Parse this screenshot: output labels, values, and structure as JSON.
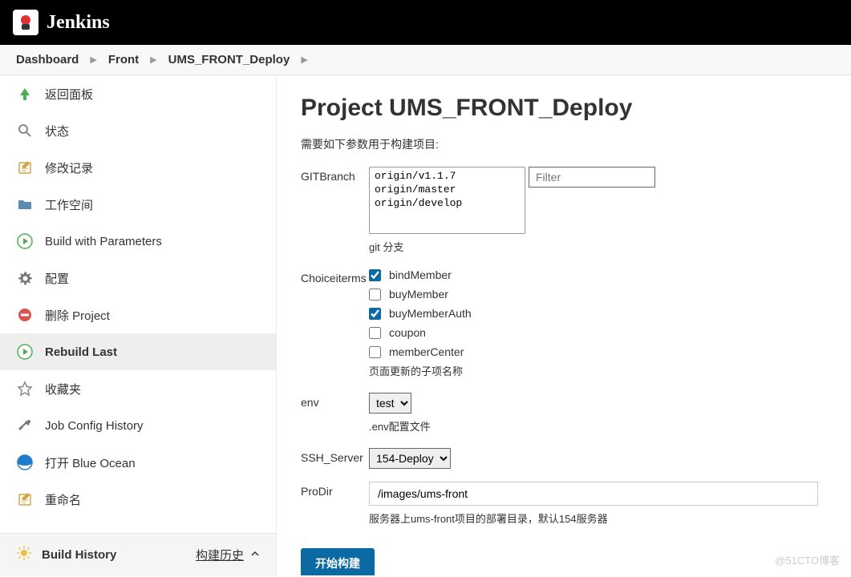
{
  "header": {
    "brand": "Jenkins"
  },
  "breadcrumbs": [
    {
      "label": "Dashboard"
    },
    {
      "label": "Front"
    },
    {
      "label": "UMS_FRONT_Deploy"
    }
  ],
  "sidebar": {
    "items": [
      {
        "label": "返回面板",
        "icon": "arrow-up",
        "color": "#4caf50"
      },
      {
        "label": "状态",
        "icon": "search",
        "color": "#888"
      },
      {
        "label": "修改记录",
        "icon": "notepad",
        "color": "#d4a548"
      },
      {
        "label": "工作空间",
        "icon": "folder",
        "color": "#5b8ab3"
      },
      {
        "label": "Build with Parameters",
        "icon": "play-circle",
        "color": "#4caf50"
      },
      {
        "label": "配置",
        "icon": "gear",
        "color": "#777"
      },
      {
        "label": "删除 Project",
        "icon": "no-entry",
        "color": "#d9534f"
      },
      {
        "label": "Rebuild Last",
        "icon": "play-circle",
        "color": "#4caf50",
        "active": true
      },
      {
        "label": "收藏夹",
        "icon": "star",
        "color": "#888"
      },
      {
        "label": "Job Config History",
        "icon": "tools",
        "color": "#777"
      },
      {
        "label": "打开 Blue Ocean",
        "icon": "blue-ocean",
        "color": "#1d7dca"
      },
      {
        "label": "重命名",
        "icon": "notepad",
        "color": "#d4a548"
      }
    ],
    "buildHistory": {
      "title": "Build History",
      "link": "构建历史"
    }
  },
  "page": {
    "title": "Project UMS_FRONT_Deploy",
    "subtitle": "需要如下参数用于构建项目:",
    "gitBranch": {
      "label": "GITBranch",
      "options": [
        "origin/v1.1.7",
        "origin/master",
        "origin/develop"
      ],
      "filterPlaceholder": "Filter",
      "help": "git 分支"
    },
    "choiceItems": {
      "label": "Choiceiterms",
      "options": [
        {
          "label": "bindMember",
          "checked": true
        },
        {
          "label": "buyMember",
          "checked": false
        },
        {
          "label": "buyMemberAuth",
          "checked": true
        },
        {
          "label": "coupon",
          "checked": false
        },
        {
          "label": "memberCenter",
          "checked": false
        }
      ],
      "help": "页面更新的子项名称"
    },
    "env": {
      "label": "env",
      "value": "test",
      "help": ".env配置文件"
    },
    "sshServer": {
      "label": "SSH_Server",
      "value": "154-Deploy"
    },
    "proDir": {
      "label": "ProDir",
      "value": "/images/ums-front",
      "help": "服务器上ums-front项目的部署目录，默认154服务器"
    },
    "submitLabel": "开始构建"
  },
  "watermark": "@51CTO博客"
}
